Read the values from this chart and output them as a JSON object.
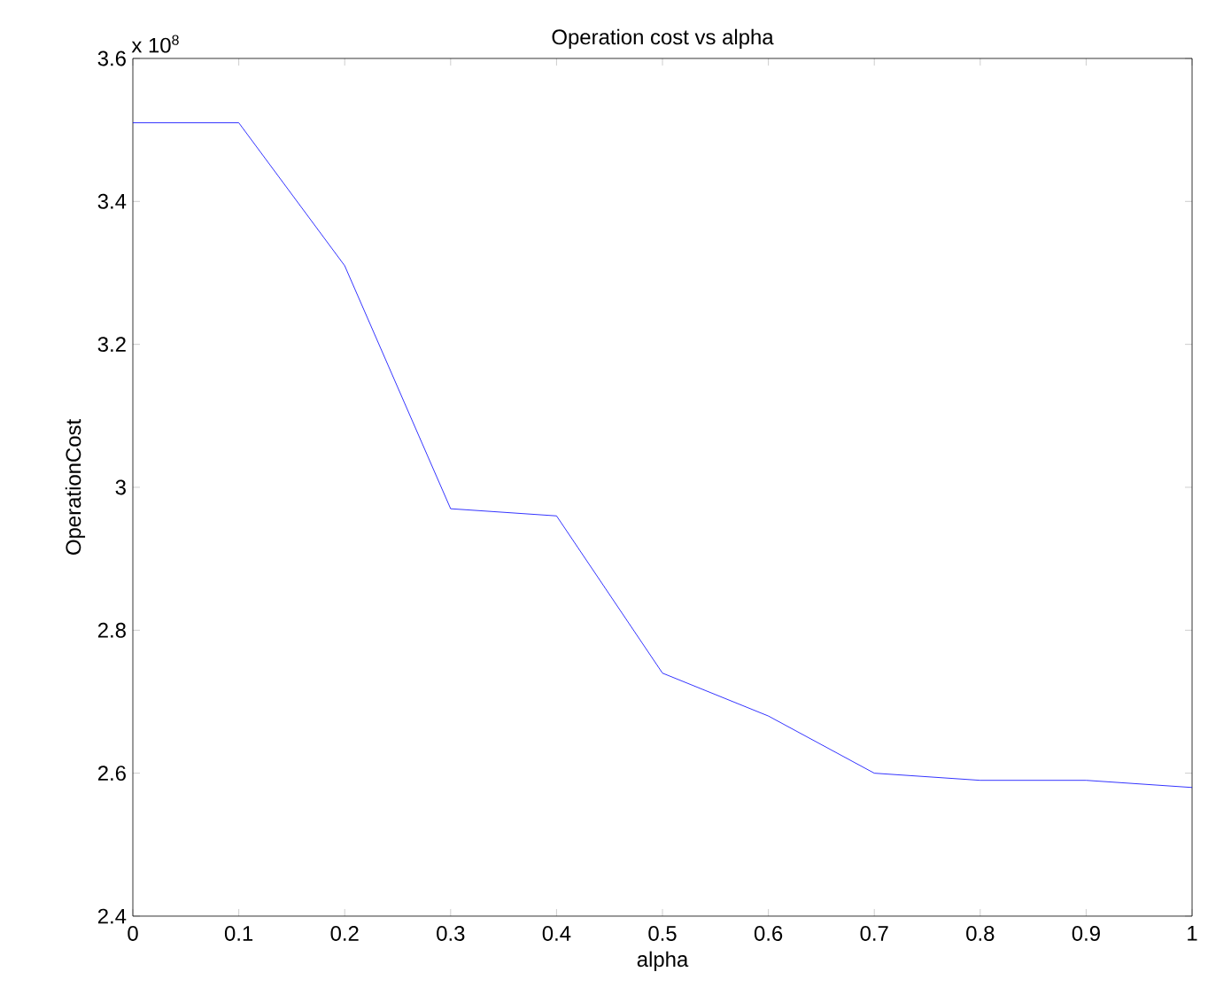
{
  "chart_data": {
    "type": "line",
    "title": "Operation cost vs alpha",
    "xlabel": "alpha",
    "ylabel": "OperationCost",
    "annotations": [
      "x 10$^{8}$"
    ],
    "x": [
      0,
      0.1,
      0.2,
      0.3,
      0.4,
      0.5,
      0.6,
      0.7,
      0.8,
      0.9,
      1
    ],
    "series": [
      {
        "color": "#0000ff",
        "values": [
          3.51,
          3.51,
          3.31,
          2.97,
          2.96,
          2.74,
          2.68,
          2.6,
          2.59,
          2.59,
          2.58
        ]
      }
    ],
    "xlim": [
      0,
      1
    ],
    "ylim": [
      2.4,
      3.6
    ],
    "xticks": [
      0,
      0.1,
      0.2,
      0.3,
      0.4,
      0.5,
      0.6,
      0.7,
      0.8,
      0.9,
      1
    ],
    "yticks": [
      2.4,
      2.6,
      2.8,
      3,
      3.2,
      3.4,
      3.6
    ],
    "grid": false,
    "marker": "none",
    "line_style": "solid"
  }
}
